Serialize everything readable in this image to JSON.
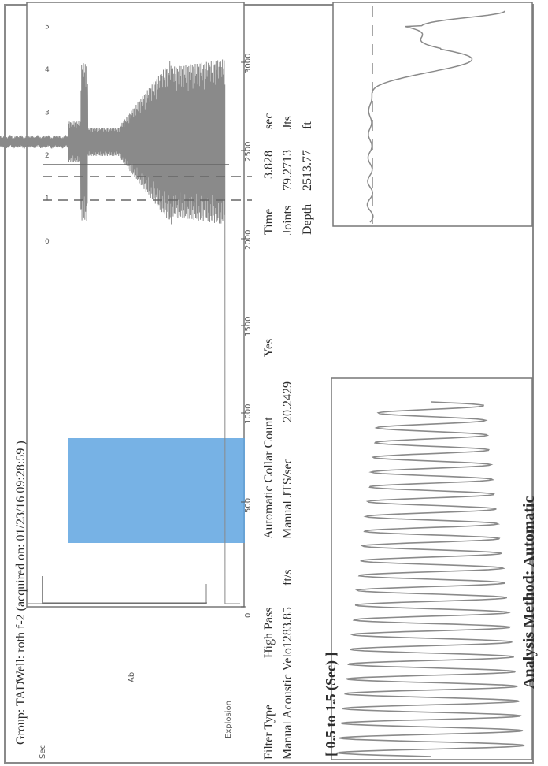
{
  "header": {
    "group": "Group: TAD",
    "well": "Well: roth f-2 (acquired on: 01/23/16 09:28:59 )"
  },
  "labels": {
    "sec": "Sec",
    "ab": "Ab",
    "explosion": "Explosion",
    "time_window": "[ 0.5 to 1.5 (Sec) ]",
    "analysis_method": "Analysis Method: Automatic"
  },
  "params": {
    "filter_type_label": "Filter Type",
    "filter_type_value": "High Pass",
    "velocity_label": "Manual Acoustic Velo1283.85",
    "velocity_unit": "ft/s",
    "collar_label": "Automatic Collar Count",
    "collar_value": "Yes",
    "jts_label": "Manual JTS/sec",
    "jts_value": "20.2429",
    "time_label": "Time",
    "time_value": "3.828",
    "time_unit": "sec",
    "joints_label": "Joints",
    "joints_value": "79.2713",
    "joints_unit": "Jts",
    "depth_label": "Depth",
    "depth_value": "2513.77",
    "depth_unit": "ft"
  },
  "colors": {
    "trace": "#8a8a8a",
    "highlight": "#5fa4e1",
    "dashed": "#7a7a7a",
    "frame": "#777777"
  },
  "chart_data": {
    "type": "line",
    "title": "",
    "xlabel": "",
    "ylabel": "",
    "time_axis_sec": [
      0,
      1,
      2,
      3,
      4,
      5
    ],
    "joints_axis": [
      "0",
      "500",
      "1000",
      "1500",
      "2000",
      "2500",
      "3000"
    ],
    "xlim": [
      0,
      5.5
    ],
    "highlight_window_sec": [
      0.5,
      1.5
    ],
    "marker_time_sec": 3.828,
    "grid": false
  }
}
